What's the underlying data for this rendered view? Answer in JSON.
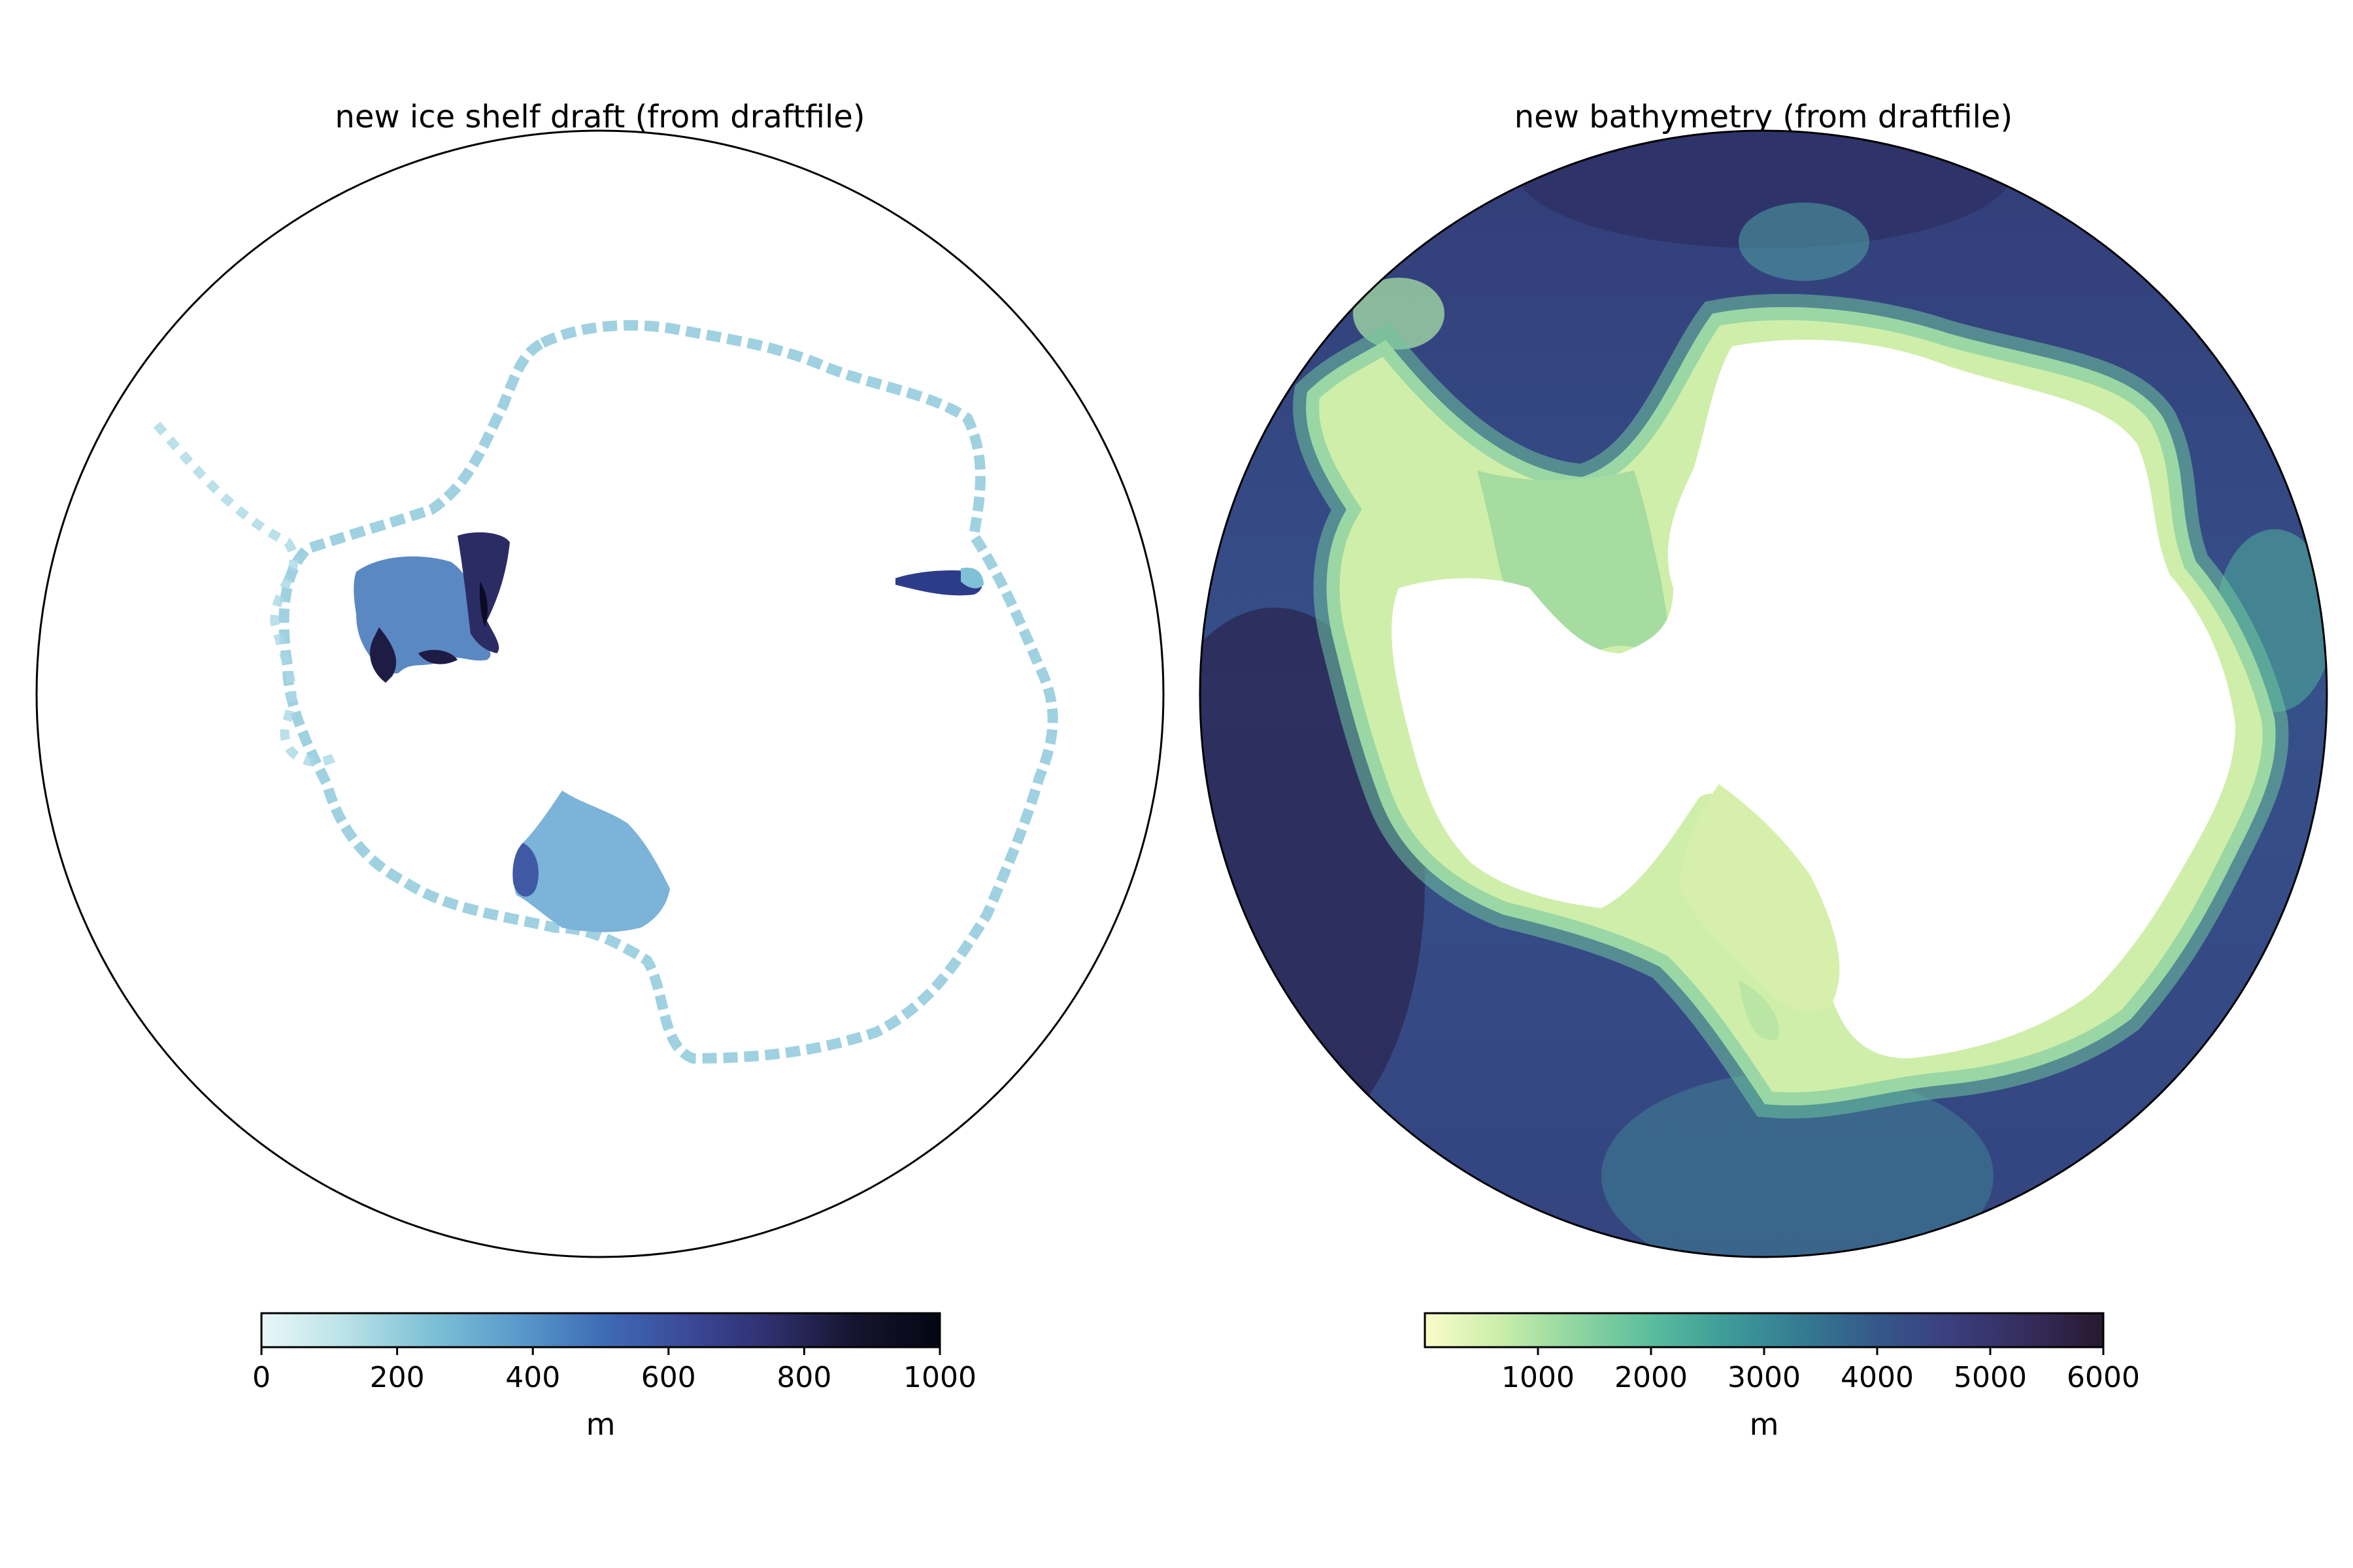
{
  "figure": {
    "panels": [
      {
        "title": "new ice shelf draft (from draftfile)",
        "colormap_name": "ice",
        "colorbar": {
          "label": "m",
          "range": [
            0,
            1000
          ],
          "ticks": [
            "0",
            "200",
            "400",
            "600",
            "800",
            "1000"
          ],
          "colors": [
            "#eaf7f8",
            "#b8e2e6",
            "#7ec0d6",
            "#5a9bca",
            "#3f6db6",
            "#3b4a9a",
            "#2f2f6e",
            "#16142e",
            "#040613"
          ]
        }
      },
      {
        "title": "new bathymetry (from draftfile)",
        "colormap_name": "deep",
        "colorbar": {
          "label": "m",
          "range": [
            0,
            6000
          ],
          "ticks": [
            "1000",
            "2000",
            "3000",
            "4000",
            "5000",
            "6000"
          ],
          "colors": [
            "#fbfcc9",
            "#c9eeaa",
            "#8fd6a0",
            "#5bbd9d",
            "#3e9c99",
            "#357a92",
            "#34588a",
            "#3a3e7d",
            "#352c5c",
            "#28192e"
          ]
        }
      }
    ]
  },
  "chart_data": [
    {
      "type": "heatmap",
      "title": "new ice shelf draft (from draftfile)",
      "projection": "south polar stereographic (circular boundary)",
      "colorbar_label": "m",
      "value_range": [
        0,
        1000
      ],
      "colorbar_ticks": [
        0,
        200,
        400,
        600,
        800,
        1000
      ],
      "regions": [
        {
          "name": "",
          "typical_value": 450,
          "max_value": 1000
        },
        {
          "name": "",
          "typical_value": 350,
          "max_value": 900
        },
        {
          "name": "",
          "typical_value": 150,
          "max_value": 500
        }
      ]
    },
    {
      "type": "heatmap",
      "title": "new bathymetry (from draftfile)",
      "projection": "south polar stereographic (circular boundary)",
      "colorbar_label": "m",
      "value_range": [
        0,
        6000
      ],
      "colorbar_ticks": [
        1000,
        2000,
        3000,
        4000,
        5000,
        6000
      ],
      "regions": [
        {
          "name": "",
          "typical_value": 600
        },
        {
          "name": "",
          "typical_value": 2500
        },
        {
          "name": "",
          "typical_value": 4500
        },
        {
          "name": "",
          "typical_value": 5300
        }
      ]
    }
  ]
}
